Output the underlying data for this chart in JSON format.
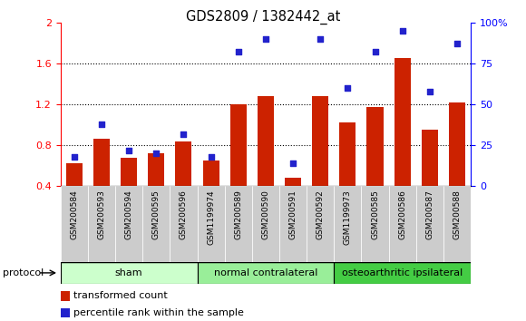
{
  "title": "GDS2809 / 1382442_at",
  "categories": [
    "GSM200584",
    "GSM200593",
    "GSM200594",
    "GSM200595",
    "GSM200596",
    "GSM1199974",
    "GSM200589",
    "GSM200590",
    "GSM200591",
    "GSM200592",
    "GSM1199973",
    "GSM200585",
    "GSM200586",
    "GSM200587",
    "GSM200588"
  ],
  "bar_values": [
    0.62,
    0.86,
    0.68,
    0.72,
    0.84,
    0.65,
    1.2,
    1.28,
    0.48,
    1.28,
    1.02,
    1.17,
    1.65,
    0.95,
    1.22
  ],
  "scatter_values": [
    18,
    38,
    22,
    20,
    32,
    18,
    82,
    90,
    14,
    90,
    60,
    82,
    95,
    58,
    87
  ],
  "bar_color": "#cc2200",
  "scatter_color": "#2222cc",
  "ylim_left": [
    0.4,
    2.0
  ],
  "ylim_right": [
    0,
    100
  ],
  "yticks_left": [
    0.4,
    0.8,
    1.2,
    1.6,
    2.0
  ],
  "ytick_labels_left": [
    "0.4",
    "0.8",
    "1.2",
    "1.6",
    "2"
  ],
  "yticks_right": [
    0,
    25,
    50,
    75,
    100
  ],
  "ytick_labels_right": [
    "0",
    "25",
    "50",
    "75",
    "100%"
  ],
  "grid_yticks": [
    0.8,
    1.2,
    1.6
  ],
  "groups": [
    {
      "label": "sham",
      "start": 0,
      "end": 5,
      "color": "#ccffcc"
    },
    {
      "label": "normal contralateral",
      "start": 5,
      "end": 10,
      "color": "#99ee99"
    },
    {
      "label": "osteoarthritic ipsilateral",
      "start": 10,
      "end": 15,
      "color": "#44cc44"
    }
  ],
  "protocol_label": "protocol",
  "legend_bar_label": "transformed count",
  "legend_scatter_label": "percentile rank within the sample",
  "bar_bottom": 0.4,
  "xtick_bg": "#cccccc",
  "fig_width": 5.8,
  "fig_height": 3.54,
  "dpi": 100
}
